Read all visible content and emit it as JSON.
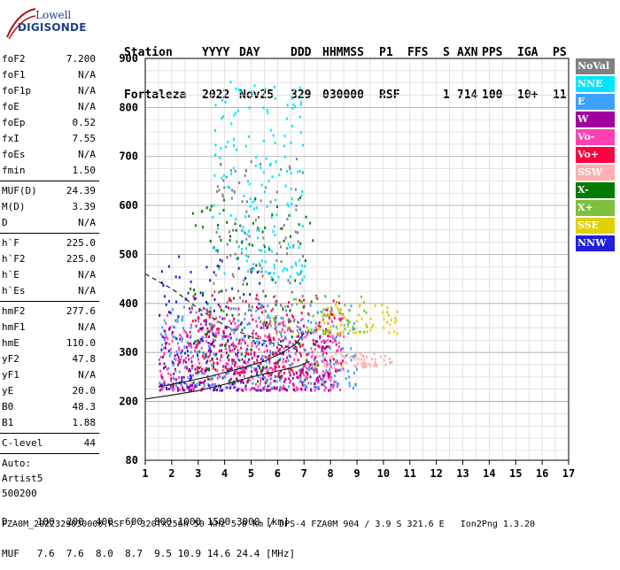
{
  "logo": {
    "line1": "Lowell",
    "line2": "DIGISONDE"
  },
  "header": {
    "labels": [
      "Station",
      "YYYY",
      "DAY",
      "DDD",
      "HHMMSS",
      "P1",
      "FFS",
      "S",
      "AXN",
      "PPS",
      "IGA",
      "PS"
    ],
    "values": [
      "Fortaleza",
      "2022",
      "Nov25",
      "329",
      "030000",
      "RSF",
      "",
      "1",
      "714",
      "100",
      "10+",
      "11"
    ]
  },
  "params": [
    {
      "k": "foF2",
      "v": "7.200"
    },
    {
      "k": "foF1",
      "v": "N/A"
    },
    {
      "k": "foF1p",
      "v": "N/A"
    },
    {
      "k": "foE",
      "v": "N/A"
    },
    {
      "k": "foEp",
      "v": "0.52"
    },
    {
      "k": "fxI",
      "v": "7.55"
    },
    {
      "k": "foEs",
      "v": "N/A"
    },
    {
      "k": "fmin",
      "v": "1.50"
    },
    {
      "sep": true
    },
    {
      "k": "MUF(D)",
      "v": "24.39"
    },
    {
      "k": "M(D)",
      "v": "3.39"
    },
    {
      "k": "D",
      "v": "N/A"
    },
    {
      "sep": true
    },
    {
      "k": "h`F",
      "v": "225.0"
    },
    {
      "k": "h`F2",
      "v": "225.0"
    },
    {
      "k": "h`E",
      "v": "N/A"
    },
    {
      "k": "h`Es",
      "v": "N/A"
    },
    {
      "sep": true
    },
    {
      "k": "hmF2",
      "v": "277.6"
    },
    {
      "k": "hmF1",
      "v": "N/A"
    },
    {
      "k": "hmE",
      "v": "110.0"
    },
    {
      "k": "yF2",
      "v": "47.8"
    },
    {
      "k": "yF1",
      "v": "N/A"
    },
    {
      "k": "yE",
      "v": "20.0"
    },
    {
      "k": "B0",
      "v": "48.3"
    },
    {
      "k": "B1",
      "v": "1.88"
    },
    {
      "sep": true
    },
    {
      "k": "C-level",
      "v": "44"
    },
    {
      "sep": true
    }
  ],
  "autoscale": {
    "l1": "Auto:",
    "l2": "Artist5",
    "l3": "500200"
  },
  "legend": [
    {
      "label": "NoVal",
      "color": "#808080"
    },
    {
      "label": "NNE",
      "color": "#00e5ff"
    },
    {
      "label": "E",
      "color": "#3f9fff"
    },
    {
      "label": "W",
      "color": "#a000a0"
    },
    {
      "label": "Vo-",
      "color": "#ff3fb4"
    },
    {
      "label": "Vo+",
      "color": "#ff0040"
    },
    {
      "label": "SSW",
      "color": "#ffb0b0"
    },
    {
      "label": "X-",
      "color": "#007a00"
    },
    {
      "label": "X+",
      "color": "#7fbf3f"
    },
    {
      "label": "SSE",
      "color": "#e0d000"
    },
    {
      "label": "NNW",
      "color": "#1f1fe0"
    }
  ],
  "footer": {
    "d_row": "D     100  200  400  600  800 1000 1500 3000 [km]",
    "muf_row": "MUF   7.6  7.6  8.0  8.7  9.5 10.9 14.6 24.4 [MHz]",
    "info": "FZA0M_2022329030000.RSF / 320fx256h 50 kHz 5.0 km / DPS-4 FZA0M 904 / 3.9 S 321.6 E   Ion2Png 1.3.20"
  },
  "chart_data": {
    "type": "scatter",
    "xlim": [
      1,
      17
    ],
    "ylim": [
      80,
      900
    ],
    "x_ticks": [
      1,
      2,
      3,
      4,
      5,
      6,
      7,
      8,
      9,
      10,
      11,
      12,
      13,
      14,
      15,
      16,
      17
    ],
    "y_ticks": [
      80,
      200,
      300,
      400,
      500,
      600,
      700,
      800,
      900
    ],
    "grid": true,
    "series": [
      {
        "name": "trace-virtual-height",
        "values": [
          [
            1.0,
            205
          ],
          [
            2,
            213
          ],
          [
            3,
            222
          ],
          [
            4,
            235
          ],
          [
            5,
            250
          ],
          [
            6,
            262
          ],
          [
            6.8,
            272
          ],
          [
            7.2,
            282
          ]
        ]
      },
      {
        "name": "trace-lower",
        "values": [
          [
            1.5,
            230
          ],
          [
            2.5,
            240
          ],
          [
            3.5,
            252
          ],
          [
            4.5,
            266
          ],
          [
            5.5,
            282
          ],
          [
            6.2,
            300
          ],
          [
            6.7,
            318
          ],
          [
            7.0,
            340
          ]
        ]
      },
      {
        "name": "trace-dashed-profile",
        "values": [
          [
            1.0,
            460
          ],
          [
            2,
            430
          ],
          [
            3,
            390
          ],
          [
            4,
            355
          ],
          [
            5,
            332
          ],
          [
            6,
            316
          ],
          [
            6.8,
            305
          ]
        ]
      }
    ],
    "echo_clusters": [
      {
        "legend": "SSW",
        "x": [
          7.0,
          10.3
        ],
        "y": [
          272,
          300
        ],
        "n": 90
      },
      {
        "legend": "Vo-",
        "x": [
          1.5,
          8.5
        ],
        "y": [
          225,
          380
        ],
        "n": 420
      },
      {
        "legend": "W",
        "x": [
          1.5,
          8.0
        ],
        "y": [
          225,
          360
        ],
        "n": 260
      },
      {
        "legend": "Vo+",
        "x": [
          2.5,
          8.5
        ],
        "y": [
          260,
          420
        ],
        "n": 200
      },
      {
        "legend": "E",
        "x": [
          1.5,
          9.0
        ],
        "y": [
          230,
          400
        ],
        "n": 260
      },
      {
        "legend": "NNE",
        "x": [
          3.5,
          7.0
        ],
        "y": [
          450,
          860
        ],
        "n": 180
      },
      {
        "legend": "NNW",
        "x": [
          1.5,
          5.5
        ],
        "y": [
          225,
          500
        ],
        "n": 120
      },
      {
        "legend": "X-",
        "x": [
          2.5,
          7.5
        ],
        "y": [
          240,
          620
        ],
        "n": 120
      },
      {
        "legend": "X+",
        "x": [
          5.5,
          9.5
        ],
        "y": [
          340,
          420
        ],
        "n": 60
      },
      {
        "legend": "SSE",
        "x": [
          7.5,
          10.5
        ],
        "y": [
          340,
          400
        ],
        "n": 60
      },
      {
        "legend": "NoVal",
        "x": [
          3.5,
          7.0
        ],
        "y": [
          360,
          700
        ],
        "n": 140
      }
    ]
  }
}
